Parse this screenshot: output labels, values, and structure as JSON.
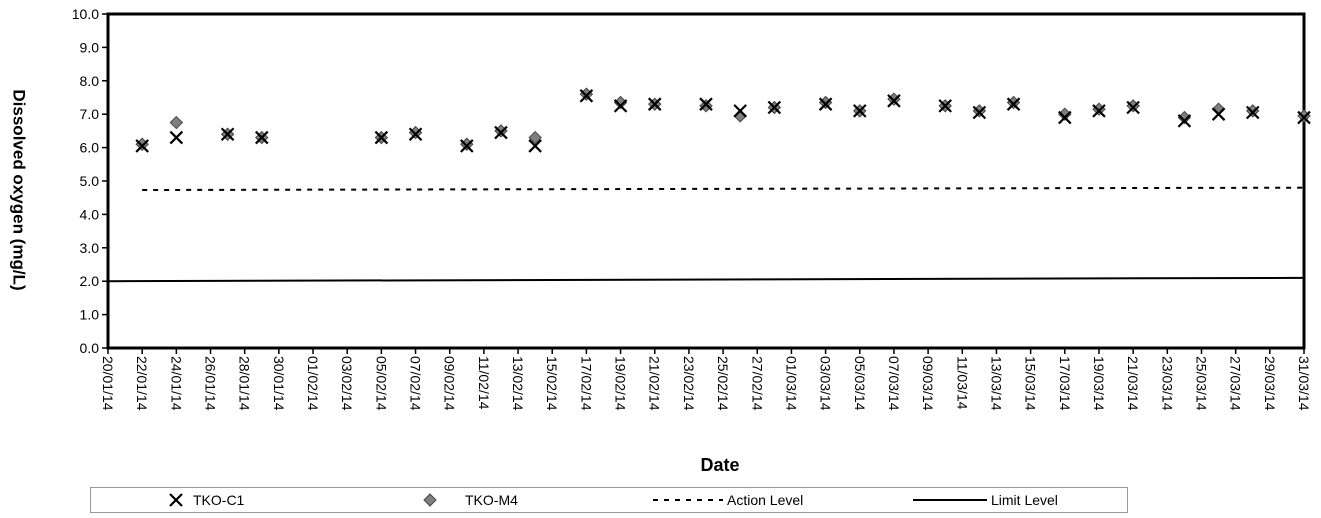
{
  "chart_data": {
    "type": "scatter",
    "title": "",
    "xlabel": "Date",
    "ylabel": "Dissolved oxygen (mg/L)",
    "ylim": [
      0,
      10
    ],
    "y_ticks": [
      "0.0",
      "1.0",
      "2.0",
      "3.0",
      "4.0",
      "5.0",
      "6.0",
      "7.0",
      "8.0",
      "9.0",
      "10.0"
    ],
    "x_range": [
      "2014-01-20",
      "2014-03-31"
    ],
    "x_ticks": [
      "20/01/14",
      "22/01/14",
      "24/01/14",
      "26/01/14",
      "28/01/14",
      "30/01/14",
      "01/02/14",
      "03/02/14",
      "05/02/14",
      "07/02/14",
      "09/02/14",
      "11/02/14",
      "13/02/14",
      "15/02/14",
      "17/02/14",
      "19/02/14",
      "21/02/14",
      "23/02/14",
      "25/02/14",
      "27/02/14",
      "01/03/14",
      "03/03/14",
      "05/03/14",
      "07/03/14",
      "09/03/14",
      "11/03/14",
      "13/03/14",
      "15/03/14",
      "17/03/14",
      "19/03/14",
      "21/03/14",
      "23/03/14",
      "25/03/14",
      "27/03/14",
      "29/03/14",
      "31/03/14"
    ],
    "grid": false,
    "legend_position": "bottom",
    "series": [
      {
        "name": "TKO-C1",
        "marker": "x",
        "color": "#000000",
        "points": [
          {
            "x": "2014-01-22",
            "y": 6.05
          },
          {
            "x": "2014-01-24",
            "y": 6.3
          },
          {
            "x": "2014-01-27",
            "y": 6.4
          },
          {
            "x": "2014-01-29",
            "y": 6.3
          },
          {
            "x": "2014-02-05",
            "y": 6.3
          },
          {
            "x": "2014-02-07",
            "y": 6.4
          },
          {
            "x": "2014-02-10",
            "y": 6.05
          },
          {
            "x": "2014-02-12",
            "y": 6.45
          },
          {
            "x": "2014-02-14",
            "y": 6.05
          },
          {
            "x": "2014-02-17",
            "y": 7.55
          },
          {
            "x": "2014-02-19",
            "y": 7.25
          },
          {
            "x": "2014-02-21",
            "y": 7.3
          },
          {
            "x": "2014-02-24",
            "y": 7.3
          },
          {
            "x": "2014-02-26",
            "y": 7.1
          },
          {
            "x": "2014-02-28",
            "y": 7.2
          },
          {
            "x": "2014-03-03",
            "y": 7.3
          },
          {
            "x": "2014-03-05",
            "y": 7.1
          },
          {
            "x": "2014-03-07",
            "y": 7.4
          },
          {
            "x": "2014-03-10",
            "y": 7.25
          },
          {
            "x": "2014-03-12",
            "y": 7.05
          },
          {
            "x": "2014-03-14",
            "y": 7.3
          },
          {
            "x": "2014-03-17",
            "y": 6.9
          },
          {
            "x": "2014-03-19",
            "y": 7.1
          },
          {
            "x": "2014-03-21",
            "y": 7.2
          },
          {
            "x": "2014-03-24",
            "y": 6.8
          },
          {
            "x": "2014-03-26",
            "y": 7.0
          },
          {
            "x": "2014-03-28",
            "y": 7.05
          },
          {
            "x": "2014-03-31",
            "y": 6.9
          }
        ]
      },
      {
        "name": "TKO-M4",
        "marker": "diamond",
        "color": "#7f7f7f",
        "points": [
          {
            "x": "2014-01-22",
            "y": 6.1
          },
          {
            "x": "2014-01-24",
            "y": 6.75
          },
          {
            "x": "2014-01-27",
            "y": 6.4
          },
          {
            "x": "2014-01-29",
            "y": 6.3
          },
          {
            "x": "2014-02-05",
            "y": 6.3
          },
          {
            "x": "2014-02-07",
            "y": 6.45
          },
          {
            "x": "2014-02-10",
            "y": 6.1
          },
          {
            "x": "2014-02-12",
            "y": 6.5
          },
          {
            "x": "2014-02-14",
            "y": 6.3
          },
          {
            "x": "2014-02-17",
            "y": 7.6
          },
          {
            "x": "2014-02-19",
            "y": 7.35
          },
          {
            "x": "2014-02-21",
            "y": 7.3
          },
          {
            "x": "2014-02-24",
            "y": 7.25
          },
          {
            "x": "2014-02-26",
            "y": 6.95
          },
          {
            "x": "2014-02-28",
            "y": 7.2
          },
          {
            "x": "2014-03-03",
            "y": 7.35
          },
          {
            "x": "2014-03-05",
            "y": 7.1
          },
          {
            "x": "2014-03-07",
            "y": 7.45
          },
          {
            "x": "2014-03-10",
            "y": 7.25
          },
          {
            "x": "2014-03-12",
            "y": 7.1
          },
          {
            "x": "2014-03-14",
            "y": 7.35
          },
          {
            "x": "2014-03-17",
            "y": 7.0
          },
          {
            "x": "2014-03-19",
            "y": 7.15
          },
          {
            "x": "2014-03-21",
            "y": 7.25
          },
          {
            "x": "2014-03-24",
            "y": 6.9
          },
          {
            "x": "2014-03-26",
            "y": 7.15
          },
          {
            "x": "2014-03-28",
            "y": 7.1
          },
          {
            "x": "2014-03-31",
            "y": 6.95
          }
        ]
      }
    ],
    "reference_lines": [
      {
        "name": "Action Level",
        "style": "dashed",
        "color": "#000000",
        "start": {
          "x": "2014-01-22",
          "y": 4.73
        },
        "end": {
          "x": "2014-03-31",
          "y": 4.8
        }
      },
      {
        "name": "Limit Level",
        "style": "solid",
        "color": "#000000",
        "start": {
          "x": "2014-01-20",
          "y": 2.0
        },
        "end": {
          "x": "2014-03-31",
          "y": 2.1
        }
      }
    ]
  }
}
